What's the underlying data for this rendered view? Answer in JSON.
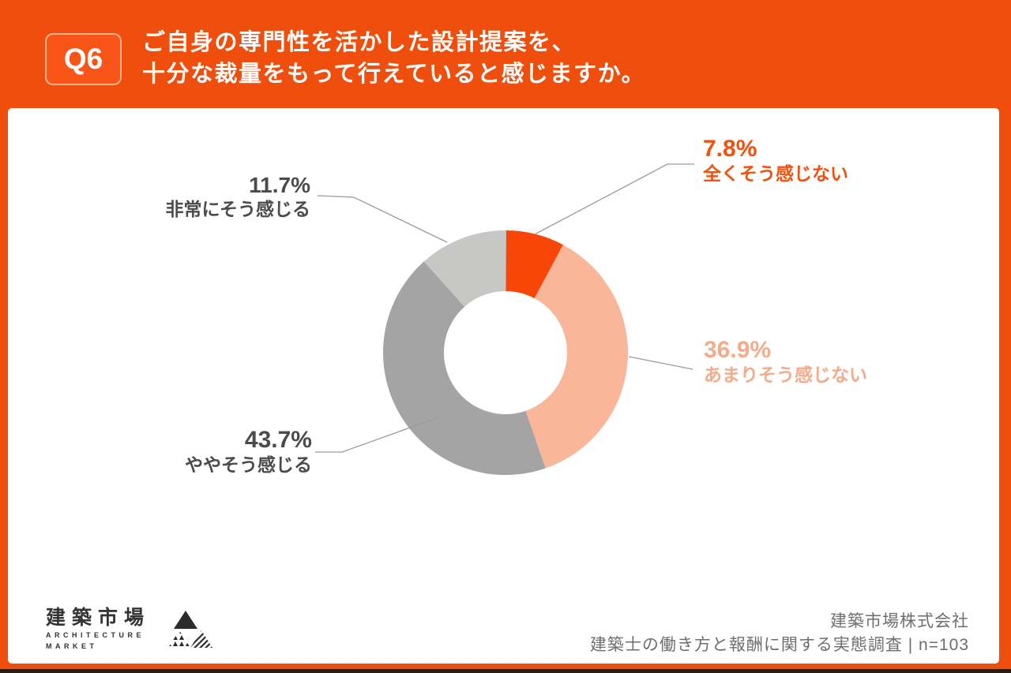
{
  "header": {
    "badge": "Q6",
    "title_line1": "ご自身の専門性を活かした設計提案を、",
    "title_line2": "十分な裁量をもって行えていると感じますか。"
  },
  "chart_data": {
    "type": "pie",
    "subtype": "donut",
    "title": "ご自身の専門性を活かした設計提案を、十分な裁量をもって行えていると感じますか。",
    "start_angle_deg": 0,
    "direction": "clockwise",
    "legend_position": "callout-labels",
    "segments": [
      {
        "label": "全くそう感じない",
        "value_pct": 7.8,
        "pct_label": "7.8%",
        "color": "#F84608",
        "label_color": "#F2500D"
      },
      {
        "label": "あまりそう感じない",
        "value_pct": 36.9,
        "pct_label": "36.9%",
        "color": "#F9B698",
        "label_color": "#F5AB8A"
      },
      {
        "label": "ややそう感じる",
        "value_pct": 43.7,
        "pct_label": "43.7%",
        "color": "#A4A4A4",
        "label_color": "#4B4B4B"
      },
      {
        "label": "非常にそう感じる",
        "value_pct": 11.7,
        "pct_label": "11.7%",
        "color": "#C7C7C5",
        "label_color": "#4B4B4B"
      }
    ]
  },
  "footer": {
    "logo_jp": "建築市場",
    "logo_en_line1": "ARCHITECTURE",
    "logo_en_line2": "MARKET",
    "company": "建築市場株式会社",
    "survey": "建築士の働き方と報酬に関する実態調査 | n=103"
  },
  "colors": {
    "background_orange": "#EF4E0C",
    "badge_orange": "#FA5519",
    "card_white": "#FFFFFF",
    "leader_line": "#9B9B9B",
    "footer_text": "#6E6E6E",
    "dark_label": "#4B4B4B"
  }
}
